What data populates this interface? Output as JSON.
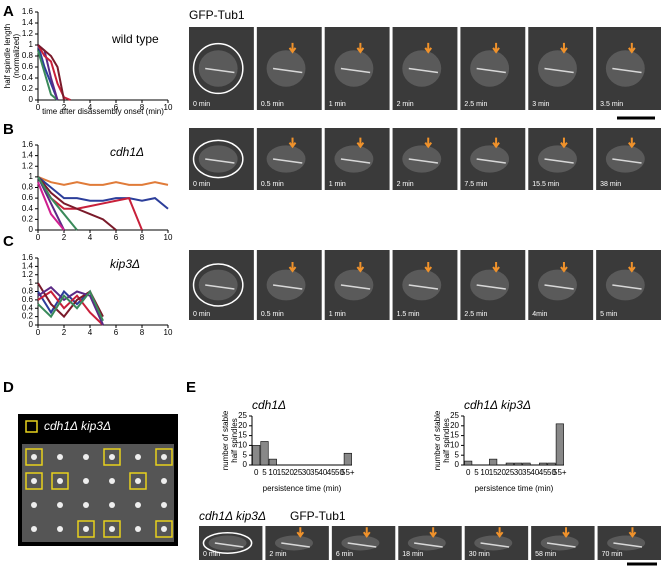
{
  "panels": {
    "labels": [
      "A",
      "B",
      "C",
      "D",
      "E"
    ]
  },
  "strips": [
    {
      "header": [
        "GFP-Tub1"
      ],
      "frames": [
        "0 min",
        "0.5 min",
        "1 min",
        "2 min",
        "2.5 min",
        "3 min",
        "3.5 min"
      ]
    },
    {
      "frames": [
        "0 min",
        "0.5 min",
        "1 min",
        "2 min",
        "7.5 min",
        "15.5 min",
        "38 min"
      ]
    },
    {
      "frames": [
        "0 min",
        "0.5 min",
        "1 min",
        "1.5 min",
        "2.5 min",
        "4min",
        "5 min"
      ]
    },
    {
      "header": [
        "cdh1Δ kip3Δ",
        "GFP-Tub1"
      ],
      "frames": [
        "0 min",
        "2 min",
        "6 min",
        "18 min",
        "30 min",
        "58 min",
        "70 min"
      ]
    }
  ],
  "plate": {
    "legend": "cdh1Δ kip3Δ"
  },
  "chart_data": [
    {
      "type": "line",
      "title": "wild type",
      "ylabel": [
        "half spindle length",
        "(normalized)"
      ],
      "xlabel": "time after disassembly onset (min)",
      "x": [
        0,
        0.5,
        1,
        1.5,
        2,
        2.5
      ],
      "xlim": [
        0,
        10
      ],
      "xticks": [
        0,
        2,
        4,
        6,
        8,
        10
      ],
      "ylim": [
        0,
        1.6
      ],
      "yticks": [
        0,
        0.2,
        0.4,
        0.6,
        0.8,
        1,
        1.2,
        1.4,
        1.6
      ],
      "series": [
        {
          "color": "#2c3e9a",
          "values": [
            1,
            0.6,
            0.3,
            0,
            null,
            null
          ]
        },
        {
          "color": "#3a8a5a",
          "values": [
            0.9,
            0.5,
            0.1,
            0,
            null,
            null
          ]
        },
        {
          "color": "#5b2a86",
          "values": [
            1,
            0.9,
            0.4,
            0,
            null,
            null
          ]
        },
        {
          "color": "#c8203a",
          "values": [
            1,
            0.8,
            0.7,
            0.3,
            0.05,
            0
          ]
        },
        {
          "color": "#7a1a2a",
          "values": [
            1,
            0.9,
            0.8,
            0.6,
            0,
            null
          ]
        }
      ]
    },
    {
      "type": "line",
      "title": "cdh1Δ",
      "x": [
        0,
        1,
        2,
        3,
        4,
        5,
        6,
        7,
        8,
        9,
        10
      ],
      "xlim": [
        0,
        10
      ],
      "xticks": [
        0,
        2,
        4,
        6,
        8,
        10
      ],
      "ylim": [
        0,
        1.6
      ],
      "yticks": [
        0,
        0.2,
        0.4,
        0.6,
        0.8,
        1,
        1.2,
        1.4,
        1.6
      ],
      "series": [
        {
          "color": "#e07b39",
          "values": [
            1,
            0.9,
            0.85,
            0.9,
            0.85,
            0.85,
            0.9,
            0.85,
            0.85,
            0.9,
            0.85
          ]
        },
        {
          "color": "#2c3e9a",
          "values": [
            1,
            0.8,
            0.6,
            0.6,
            0.55,
            0.55,
            0.6,
            0.6,
            0.55,
            0.6,
            0.4
          ]
        },
        {
          "color": "#c8203a",
          "values": [
            1,
            0.6,
            0.4,
            0.4,
            0.45,
            0.5,
            0.55,
            0.6,
            0,
            null,
            null
          ]
        },
        {
          "color": "#7a1a2a",
          "values": [
            1,
            0.7,
            0.5,
            0.4,
            0.3,
            0.2,
            0,
            null,
            null,
            null,
            null
          ]
        },
        {
          "color": "#5b2a86",
          "values": [
            1,
            0.5,
            0,
            null,
            null,
            null,
            null,
            null,
            null,
            null,
            null
          ]
        },
        {
          "color": "#d0208f",
          "values": [
            0.9,
            0.3,
            0,
            null,
            null,
            null,
            null,
            null,
            null,
            null,
            null
          ]
        },
        {
          "color": "#3a8a5a",
          "values": [
            1,
            0.6,
            0.3,
            0,
            null,
            null,
            null,
            null,
            null,
            null,
            null
          ]
        }
      ]
    },
    {
      "type": "line",
      "title": "kip3Δ",
      "x": [
        0,
        1,
        2,
        3,
        4,
        5
      ],
      "xlim": [
        0,
        10
      ],
      "xticks": [
        0,
        2,
        4,
        6,
        8,
        10
      ],
      "ylim": [
        0,
        1.6
      ],
      "yticks": [
        0,
        0.2,
        0.4,
        0.6,
        0.8,
        1,
        1.2,
        1.4,
        1.6
      ],
      "series": [
        {
          "color": "#2c3e9a",
          "values": [
            0.8,
            0.3,
            0.8,
            0.5,
            0.8,
            0
          ]
        },
        {
          "color": "#c8203a",
          "values": [
            0.6,
            0.8,
            0.4,
            0.7,
            0.3,
            0
          ]
        },
        {
          "color": "#7a1a2a",
          "values": [
            1,
            0.5,
            0.2,
            0.6,
            0.8,
            0.2
          ]
        },
        {
          "color": "#5b2a86",
          "values": [
            0.7,
            0.9,
            0.6,
            0.8,
            0.7,
            0
          ]
        },
        {
          "color": "#3a8a5a",
          "values": [
            0.5,
            0.2,
            0.7,
            0.4,
            0.8,
            0.1
          ]
        }
      ]
    },
    {
      "type": "bar",
      "title": "cdh1Δ",
      "ylabel": [
        "number of stable",
        "half spindles"
      ],
      "xlabel": "persistence time (min)",
      "color": "#888888",
      "categories": [
        "0",
        "5",
        "10",
        "15",
        "20",
        "25",
        "30",
        "35",
        "40",
        "45",
        "50",
        "55+"
      ],
      "values": [
        10,
        12,
        3,
        0,
        0,
        0,
        0,
        0,
        0,
        0,
        0,
        6
      ],
      "ylim": [
        0,
        25
      ],
      "yticks": [
        0,
        5,
        10,
        15,
        20,
        25
      ]
    },
    {
      "type": "bar",
      "title": "cdh1Δ kip3Δ",
      "ylabel": [
        "number of stable",
        "half spindles"
      ],
      "xlabel": "persistence time (min)",
      "color": "#888888",
      "categories": [
        "0",
        "5",
        "10",
        "15",
        "20",
        "25",
        "30",
        "35",
        "40",
        "45",
        "50",
        "55+"
      ],
      "values": [
        2,
        0,
        0,
        3,
        0,
        1,
        1,
        1,
        0,
        1,
        1,
        21
      ],
      "ylim": [
        0,
        25
      ],
      "yticks": [
        0,
        5,
        10,
        15,
        20,
        25
      ]
    }
  ]
}
